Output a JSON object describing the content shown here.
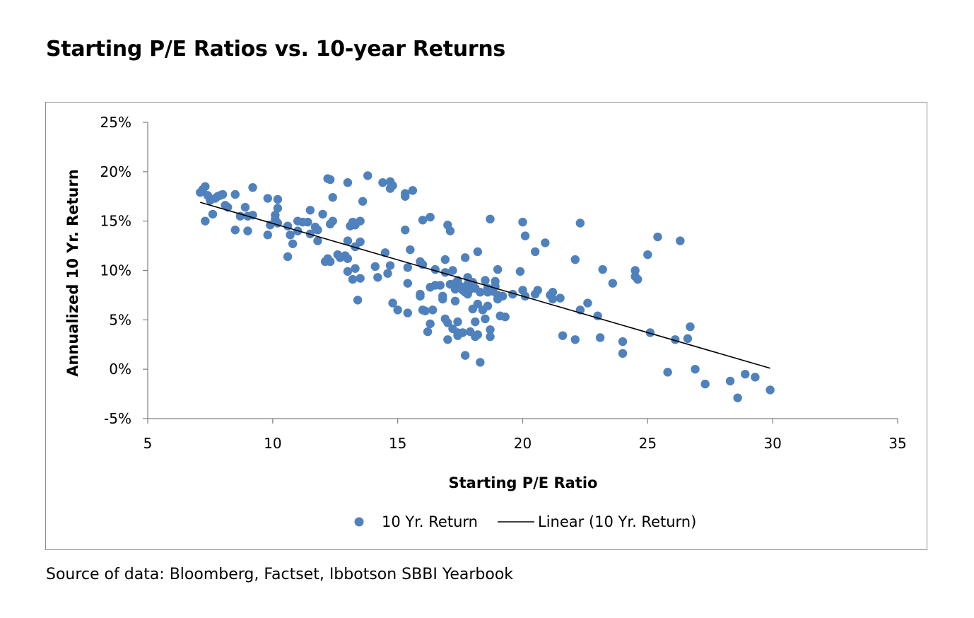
{
  "title": "Starting P/E Ratios vs. 10-year Returns",
  "source": "Source of data: Bloomberg, Factset, Ibbotson SBBI Yearbook",
  "chart_data": {
    "type": "scatter",
    "title": "Starting P/E Ratios vs. 10-year Returns",
    "xlabel": "Starting P/E Ratio",
    "ylabel": "Annualized 10 Yr. Return",
    "xlim": [
      5,
      35
    ],
    "ylim": [
      -5,
      25
    ],
    "xticks": [
      5,
      10,
      15,
      20,
      25,
      30,
      35
    ],
    "xtick_labels": [
      "5",
      "10",
      "15",
      "20",
      "25",
      "30",
      "35"
    ],
    "yticks": [
      -5,
      0,
      5,
      10,
      15,
      20,
      25
    ],
    "ytick_labels": [
      "-5%",
      "0%",
      "5%",
      "10%",
      "15%",
      "20%",
      "25%"
    ],
    "grid": false,
    "legend_position": "bottom",
    "colors": {
      "points": "#4f81bd",
      "trend": "#000000"
    },
    "series": [
      {
        "name": "10 Yr. Return",
        "points": [
          [
            7.1,
            17.9
          ],
          [
            7.2,
            18.2
          ],
          [
            7.3,
            18.5
          ],
          [
            7.4,
            17.6
          ],
          [
            7.5,
            17.1
          ],
          [
            7.7,
            17.3
          ],
          [
            7.8,
            17.5
          ],
          [
            7.9,
            17.6
          ],
          [
            8.0,
            17.7
          ],
          [
            7.3,
            15.0
          ],
          [
            7.6,
            15.7
          ],
          [
            8.1,
            16.6
          ],
          [
            8.2,
            16.4
          ],
          [
            8.5,
            17.7
          ],
          [
            8.7,
            15.5
          ],
          [
            8.9,
            16.4
          ],
          [
            9.0,
            15.5
          ],
          [
            9.2,
            15.6
          ],
          [
            9.2,
            18.4
          ],
          [
            8.5,
            14.1
          ],
          [
            9.0,
            14.0
          ],
          [
            9.8,
            17.3
          ],
          [
            9.9,
            14.6
          ],
          [
            10.1,
            15.2
          ],
          [
            10.1,
            15.6
          ],
          [
            10.2,
            16.3
          ],
          [
            10.2,
            17.2
          ],
          [
            10.2,
            14.8
          ],
          [
            9.8,
            13.6
          ],
          [
            10.6,
            14.5
          ],
          [
            10.7,
            13.6
          ],
          [
            10.8,
            12.7
          ],
          [
            10.6,
            11.4
          ],
          [
            11.0,
            14.0
          ],
          [
            11.0,
            15.0
          ],
          [
            11.2,
            14.9
          ],
          [
            11.4,
            14.9
          ],
          [
            11.5,
            13.7
          ],
          [
            11.5,
            16.1
          ],
          [
            11.7,
            14.4
          ],
          [
            11.8,
            14.1
          ],
          [
            11.8,
            13.0
          ],
          [
            12.0,
            15.7
          ],
          [
            12.1,
            10.9
          ],
          [
            12.2,
            11.2
          ],
          [
            12.2,
            19.3
          ],
          [
            12.3,
            19.2
          ],
          [
            12.4,
            15.0
          ],
          [
            12.3,
            14.7
          ],
          [
            12.3,
            10.9
          ],
          [
            12.4,
            17.4
          ],
          [
            12.6,
            11.6
          ],
          [
            12.7,
            11.3
          ],
          [
            12.9,
            11.5
          ],
          [
            13.0,
            11.2
          ],
          [
            13.0,
            13.0
          ],
          [
            13.0,
            18.9
          ],
          [
            13.1,
            14.5
          ],
          [
            13.2,
            14.9
          ],
          [
            13.3,
            14.6
          ],
          [
            13.5,
            15.0
          ],
          [
            13.5,
            12.9
          ],
          [
            13.6,
            17.0
          ],
          [
            13.0,
            9.9
          ],
          [
            13.2,
            9.1
          ],
          [
            13.3,
            10.2
          ],
          [
            13.4,
            7.0
          ],
          [
            13.5,
            9.2
          ],
          [
            13.3,
            12.4
          ],
          [
            13.8,
            19.6
          ],
          [
            14.1,
            10.4
          ],
          [
            14.2,
            9.3
          ],
          [
            14.4,
            18.9
          ],
          [
            14.5,
            11.8
          ],
          [
            14.6,
            9.7
          ],
          [
            14.7,
            10.5
          ],
          [
            14.7,
            18.3
          ],
          [
            14.8,
            18.6
          ],
          [
            14.7,
            19.0
          ],
          [
            14.8,
            6.7
          ],
          [
            15.0,
            6.0
          ],
          [
            15.3,
            17.8
          ],
          [
            15.3,
            17.5
          ],
          [
            15.3,
            14.1
          ],
          [
            15.4,
            10.3
          ],
          [
            15.4,
            8.7
          ],
          [
            15.5,
            12.1
          ],
          [
            15.4,
            5.7
          ],
          [
            15.6,
            18.1
          ],
          [
            15.9,
            7.6
          ],
          [
            15.9,
            7.4
          ],
          [
            16.0,
            15.1
          ],
          [
            15.9,
            10.9
          ],
          [
            16.0,
            10.6
          ],
          [
            16.0,
            6.0
          ],
          [
            16.1,
            5.9
          ],
          [
            16.2,
            3.8
          ],
          [
            16.3,
            4.6
          ],
          [
            16.3,
            8.3
          ],
          [
            16.3,
            15.4
          ],
          [
            16.4,
            6.0
          ],
          [
            16.5,
            8.5
          ],
          [
            16.5,
            10.1
          ],
          [
            16.7,
            8.5
          ],
          [
            16.8,
            7.4
          ],
          [
            16.8,
            7.1
          ],
          [
            16.9,
            5.1
          ],
          [
            16.9,
            11.1
          ],
          [
            16.9,
            9.8
          ],
          [
            17.0,
            14.6
          ],
          [
            17.0,
            3.0
          ],
          [
            17.0,
            4.7
          ],
          [
            17.1,
            14.0
          ],
          [
            17.1,
            8.6
          ],
          [
            17.2,
            10.0
          ],
          [
            17.2,
            4.1
          ],
          [
            17.3,
            8.1
          ],
          [
            17.3,
            6.9
          ],
          [
            17.3,
            8.7
          ],
          [
            17.4,
            9.0
          ],
          [
            17.4,
            4.8
          ],
          [
            17.4,
            3.7
          ],
          [
            17.4,
            3.4
          ],
          [
            17.5,
            8.4
          ],
          [
            17.6,
            8.0
          ],
          [
            17.6,
            3.7
          ],
          [
            17.7,
            7.8
          ],
          [
            17.7,
            8.3
          ],
          [
            17.7,
            11.3
          ],
          [
            17.8,
            9.3
          ],
          [
            17.8,
            7.6
          ],
          [
            17.8,
            8.6
          ],
          [
            17.7,
            1.4
          ],
          [
            17.9,
            8.1
          ],
          [
            17.9,
            3.8
          ],
          [
            18.0,
            8.8
          ],
          [
            18.0,
            6.1
          ],
          [
            18.1,
            3.3
          ],
          [
            18.1,
            4.8
          ],
          [
            18.1,
            8.2
          ],
          [
            18.2,
            11.9
          ],
          [
            18.2,
            6.6
          ],
          [
            18.2,
            3.5
          ],
          [
            18.3,
            7.8
          ],
          [
            18.4,
            6.0
          ],
          [
            18.3,
            0.7
          ],
          [
            18.5,
            5.1
          ],
          [
            18.5,
            9.0
          ],
          [
            18.6,
            8.2
          ],
          [
            18.6,
            7.8
          ],
          [
            18.6,
            6.4
          ],
          [
            18.7,
            15.2
          ],
          [
            18.7,
            4.0
          ],
          [
            18.7,
            3.3
          ],
          [
            18.8,
            7.9
          ],
          [
            18.9,
            8.9
          ],
          [
            18.9,
            8.4
          ],
          [
            19.0,
            7.5
          ],
          [
            19.0,
            10.1
          ],
          [
            19.0,
            7.1
          ],
          [
            19.1,
            5.4
          ],
          [
            19.2,
            7.4
          ],
          [
            19.3,
            5.3
          ],
          [
            19.6,
            7.6
          ],
          [
            19.9,
            9.9
          ],
          [
            20.0,
            14.9
          ],
          [
            20.0,
            8.0
          ],
          [
            20.1,
            13.5
          ],
          [
            20.1,
            7.4
          ],
          [
            20.5,
            7.6
          ],
          [
            20.5,
            11.9
          ],
          [
            20.6,
            8.0
          ],
          [
            20.9,
            12.8
          ],
          [
            21.1,
            7.5
          ],
          [
            21.2,
            7.8
          ],
          [
            21.2,
            7.1
          ],
          [
            21.5,
            7.2
          ],
          [
            21.6,
            3.4
          ],
          [
            22.1,
            3.0
          ],
          [
            22.1,
            11.1
          ],
          [
            22.3,
            14.8
          ],
          [
            22.3,
            6.0
          ],
          [
            22.6,
            6.7
          ],
          [
            23.0,
            5.4
          ],
          [
            23.1,
            3.2
          ],
          [
            23.2,
            10.1
          ],
          [
            23.6,
            8.7
          ],
          [
            24.0,
            2.8
          ],
          [
            24.0,
            1.6
          ],
          [
            24.5,
            10.0
          ],
          [
            24.5,
            9.4
          ],
          [
            24.6,
            9.1
          ],
          [
            25.0,
            11.6
          ],
          [
            25.1,
            3.7
          ],
          [
            25.4,
            13.4
          ],
          [
            25.8,
            -0.3
          ],
          [
            26.1,
            3.0
          ],
          [
            26.3,
            13.0
          ],
          [
            26.6,
            3.1
          ],
          [
            26.7,
            4.3
          ],
          [
            26.9,
            0.0
          ],
          [
            27.3,
            -1.5
          ],
          [
            28.3,
            -1.2
          ],
          [
            28.6,
            -2.9
          ],
          [
            28.9,
            -0.5
          ],
          [
            29.3,
            -0.8
          ],
          [
            29.9,
            -2.1
          ]
        ]
      },
      {
        "name": "Linear (10 Yr. Return)",
        "kind": "trendline",
        "x": [
          7.1,
          29.9
        ],
        "y": [
          16.9,
          0.1
        ]
      }
    ]
  }
}
